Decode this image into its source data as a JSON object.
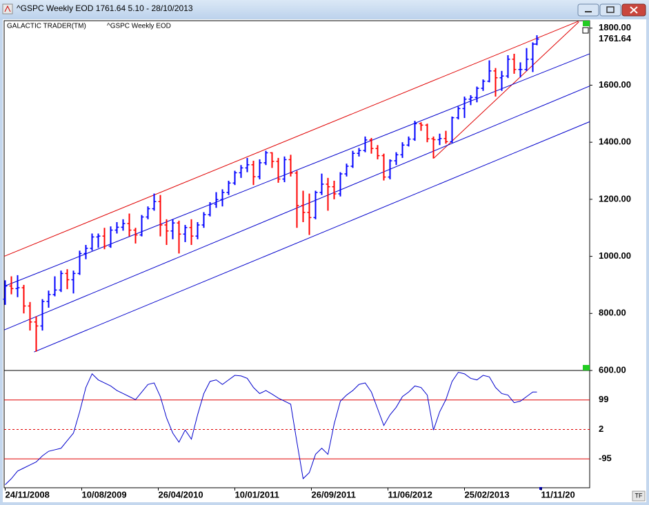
{
  "window_title": "^GSPC Weekly EOD  1761.64    5.10 - 28/10/2013",
  "tf_button": "TF",
  "chart_data": [
    {
      "type": "ohlc",
      "labels": [
        "GALACTIC TRADER(TM)",
        "^GSPC Weekly EOD"
      ],
      "up_color": "#0000ff",
      "down_color": "#ff0000",
      "x": [
        0,
        3,
        6,
        9,
        12,
        15,
        18,
        21,
        24,
        27,
        30,
        33,
        36,
        39,
        42,
        45,
        48,
        51,
        54,
        57,
        60,
        63,
        66,
        69,
        72,
        75,
        78,
        81,
        84,
        87,
        90,
        93,
        96,
        99,
        102,
        105,
        108,
        111,
        114,
        117,
        120,
        123,
        126,
        129,
        132,
        135,
        138,
        141,
        144,
        147,
        150,
        153,
        156,
        159,
        162,
        165,
        168,
        171,
        174,
        177,
        180,
        183,
        186,
        189,
        192,
        195,
        198,
        201,
        204,
        207,
        210,
        213,
        216,
        219,
        222,
        225,
        228,
        231,
        234,
        237,
        240,
        243,
        246,
        249,
        252,
        255,
        257
      ],
      "open": [
        850,
        896,
        887,
        890,
        826,
        770,
        756,
        842,
        866,
        882,
        940,
        918,
        940,
        1010,
        1028,
        1068,
        1071,
        1036,
        1092,
        1102,
        1115,
        1092,
        1075,
        1138,
        1167,
        1192,
        1110,
        1089,
        1117,
        1078,
        1101,
        1071,
        1110,
        1146,
        1183,
        1199,
        1224,
        1257,
        1293,
        1310,
        1321,
        1279,
        1328,
        1363,
        1333,
        1271,
        1339,
        1292,
        1178,
        1154,
        1136,
        1224,
        1253,
        1244,
        1219,
        1289,
        1316,
        1361,
        1371,
        1408,
        1378,
        1353,
        1278,
        1335,
        1356,
        1390,
        1411,
        1465,
        1460,
        1412,
        1409,
        1413,
        1402,
        1486,
        1518,
        1551,
        1557,
        1589,
        1614,
        1650,
        1626,
        1632,
        1691,
        1655,
        1655,
        1691,
        1744
      ],
      "high": [
        916,
        930,
        934,
        900,
        840,
        790,
        850,
        880,
        930,
        950,
        955,
        950,
        1020,
        1040,
        1080,
        1080,
        1100,
        1105,
        1120,
        1130,
        1150,
        1100,
        1145,
        1175,
        1220,
        1215,
        1130,
        1130,
        1125,
        1110,
        1130,
        1120,
        1155,
        1190,
        1225,
        1235,
        1265,
        1300,
        1320,
        1345,
        1335,
        1340,
        1370,
        1365,
        1345,
        1350,
        1356,
        1300,
        1230,
        1220,
        1230,
        1290,
        1275,
        1265,
        1295,
        1325,
        1370,
        1380,
        1420,
        1415,
        1390,
        1360,
        1340,
        1365,
        1400,
        1420,
        1475,
        1470,
        1465,
        1420,
        1430,
        1440,
        1490,
        1525,
        1560,
        1565,
        1595,
        1620,
        1687,
        1660,
        1650,
        1705,
        1710,
        1680,
        1730,
        1750,
        1775
      ],
      "low": [
        830,
        867,
        857,
        800,
        740,
        666,
        740,
        820,
        860,
        875,
        885,
        870,
        935,
        990,
        1020,
        1030,
        1025,
        1030,
        1080,
        1090,
        1070,
        1045,
        1070,
        1130,
        1160,
        1070,
        1040,
        1060,
        1010,
        1050,
        1040,
        1060,
        1100,
        1140,
        1170,
        1175,
        1215,
        1250,
        1275,
        1295,
        1250,
        1270,
        1320,
        1310,
        1258,
        1260,
        1280,
        1100,
        1120,
        1075,
        1130,
        1215,
        1160,
        1200,
        1210,
        1280,
        1310,
        1350,
        1365,
        1360,
        1340,
        1266,
        1270,
        1320,
        1345,
        1385,
        1405,
        1440,
        1400,
        1343,
        1390,
        1395,
        1398,
        1480,
        1485,
        1530,
        1540,
        1580,
        1610,
        1560,
        1580,
        1625,
        1640,
        1627,
        1650,
        1646,
        1740
      ],
      "close": [
        896,
        887,
        890,
        826,
        770,
        756,
        842,
        866,
        882,
        940,
        918,
        940,
        1010,
        1028,
        1068,
        1071,
        1036,
        1092,
        1102,
        1115,
        1092,
        1075,
        1138,
        1167,
        1192,
        1110,
        1089,
        1117,
        1078,
        1101,
        1071,
        1110,
        1146,
        1183,
        1199,
        1224,
        1257,
        1293,
        1310,
        1321,
        1279,
        1328,
        1363,
        1333,
        1271,
        1339,
        1292,
        1178,
        1154,
        1136,
        1224,
        1253,
        1244,
        1219,
        1289,
        1316,
        1361,
        1371,
        1408,
        1378,
        1353,
        1278,
        1335,
        1356,
        1390,
        1411,
        1465,
        1460,
        1412,
        1409,
        1413,
        1402,
        1486,
        1518,
        1551,
        1557,
        1589,
        1614,
        1650,
        1626,
        1632,
        1691,
        1655,
        1655,
        1691,
        1744,
        1761.64
      ],
      "trendlines": [
        {
          "color": "#e00000",
          "points": [
            [
              -0.5,
              1000
            ],
            [
              277,
              1824
            ]
          ]
        },
        {
          "color": "#e00000",
          "points": [
            [
              207.3,
              1345
            ],
            [
              277.3,
              1822
            ]
          ]
        },
        {
          "color": "#0000cc",
          "points": [
            [
              -0.5,
              895
            ],
            [
              282.5,
              1710
            ]
          ]
        },
        {
          "color": "#0000cc",
          "points": [
            [
              -0.5,
              742
            ],
            [
              282.5,
              1597
            ]
          ]
        },
        {
          "color": "#0000cc",
          "points": [
            [
              14,
              665
            ],
            [
              282.5,
              1472
            ]
          ]
        }
      ],
      "xlim": [
        -0.5,
        282.5
      ],
      "ylim": [
        600,
        1826
      ],
      "yticks": [
        {
          "value": 600,
          "label": "600.00"
        },
        {
          "value": 800,
          "label": "800.00"
        },
        {
          "value": 1000,
          "label": "1000.00"
        },
        {
          "value": 1200,
          "label": "1200.00"
        },
        {
          "value": 1400,
          "label": "1400.00"
        },
        {
          "value": 1600,
          "label": "1600.00"
        },
        {
          "value": 1800,
          "label": "1800.00"
        }
      ]
    },
    {
      "type": "line",
      "color": "#0000cc",
      "x": [
        0,
        3,
        6,
        9,
        12,
        15,
        18,
        21,
        24,
        27,
        30,
        33,
        36,
        39,
        42,
        45,
        48,
        51,
        54,
        57,
        60,
        63,
        66,
        69,
        72,
        75,
        78,
        81,
        84,
        87,
        90,
        93,
        96,
        99,
        102,
        105,
        108,
        111,
        114,
        117,
        120,
        123,
        126,
        129,
        132,
        135,
        138,
        141,
        144,
        147,
        150,
        153,
        156,
        159,
        162,
        165,
        168,
        171,
        174,
        177,
        180,
        183,
        186,
        189,
        192,
        195,
        198,
        201,
        204,
        207,
        210,
        213,
        216,
        219,
        222,
        225,
        228,
        231,
        234,
        237,
        240,
        243,
        246,
        249,
        252,
        255,
        257
      ],
      "values": [
        -180,
        -160,
        -135,
        -125,
        -115,
        -105,
        -85,
        -70,
        -65,
        -60,
        -35,
        -10,
        60,
        140,
        185,
        165,
        155,
        145,
        130,
        120,
        110,
        100,
        125,
        150,
        155,
        110,
        40,
        -10,
        -40,
        0,
        -30,
        50,
        120,
        160,
        165,
        150,
        165,
        180,
        178,
        170,
        140,
        120,
        130,
        118,
        105,
        95,
        85,
        -40,
        -160,
        -140,
        -80,
        -60,
        -80,
        20,
        95,
        115,
        130,
        150,
        155,
        125,
        70,
        15,
        50,
        75,
        110,
        125,
        145,
        140,
        115,
        0,
        60,
        100,
        160,
        190,
        185,
        170,
        165,
        180,
        175,
        140,
        120,
        115,
        90,
        95,
        110,
        125,
        125
      ],
      "xlim": [
        -0.5,
        282.5
      ],
      "ylim": [
        -190,
        196
      ],
      "yticks": [
        99,
        2,
        -95
      ],
      "ref_line_color": "#e00000",
      "ref_line_styles": [
        "solid",
        "dashed",
        "solid"
      ],
      "xticks": [
        {
          "value": 0,
          "label": "24/11/2008"
        },
        {
          "value": 37,
          "label": "10/08/2009"
        },
        {
          "value": 74,
          "label": "26/04/2010"
        },
        {
          "value": 111,
          "label": "10/01/2011"
        },
        {
          "value": 148,
          "label": "26/09/2011"
        },
        {
          "value": 185,
          "label": "11/06/2012"
        },
        {
          "value": 222,
          "label": "25/02/2013"
        },
        {
          "value": 259,
          "label": "11/11/20"
        }
      ]
    }
  ]
}
